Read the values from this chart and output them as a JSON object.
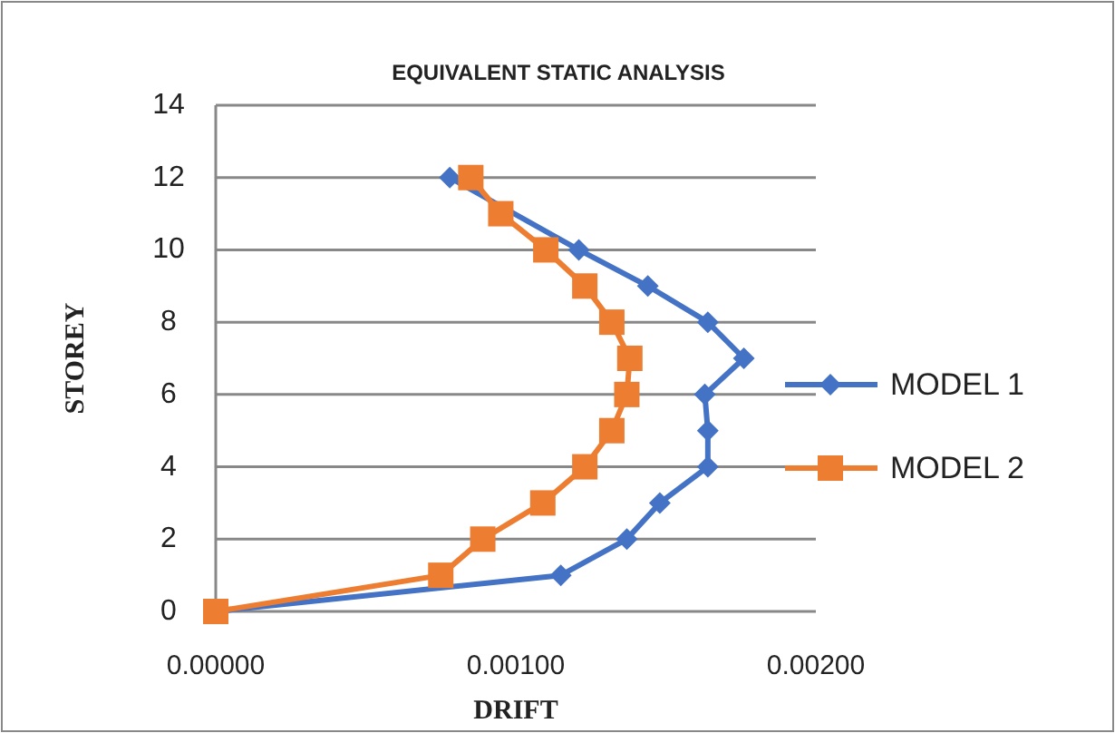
{
  "chart_data": {
    "type": "line",
    "title": "EQUIVALENT STATIC ANALYSIS",
    "xlabel": "DRIFT",
    "ylabel": "STOREY",
    "xlim": [
      0,
      0.002
    ],
    "xticks": [
      {
        "value": 0,
        "label": "0.00000"
      },
      {
        "value": 0.001,
        "label": "0.00100"
      },
      {
        "value": 0.002,
        "label": "0.00200"
      }
    ],
    "ylim": [
      0,
      14
    ],
    "yticks": [
      0,
      2,
      4,
      6,
      8,
      10,
      12,
      14
    ],
    "grid": "y",
    "legend": "right",
    "series": [
      {
        "name": "MODEL 1",
        "color": "#4472c4",
        "marker": "diamond",
        "x": [
          0,
          0.00115,
          0.00137,
          0.00148,
          0.00164,
          0.00164,
          0.00163,
          0.00176,
          0.00164,
          0.00144,
          0.00121,
          null,
          0.00078
        ],
        "values": [
          0,
          1,
          2,
          3,
          4,
          5,
          6,
          7,
          8,
          9,
          10,
          null,
          12
        ]
      },
      {
        "name": "MODEL 2",
        "color": "#ed7d31",
        "marker": "square",
        "x": [
          0,
          0.00075,
          0.00089,
          0.00109,
          0.00123,
          0.00132,
          0.00137,
          0.00138,
          0.00132,
          0.00123,
          0.0011,
          0.00095,
          0.00085
        ],
        "values": [
          0,
          1,
          2,
          3,
          4,
          5,
          6,
          7,
          8,
          9,
          10,
          11,
          12
        ]
      }
    ]
  }
}
